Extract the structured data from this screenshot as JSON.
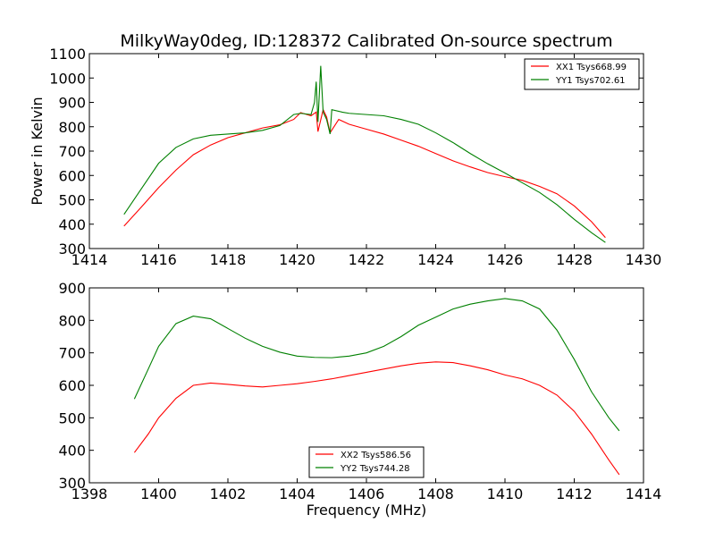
{
  "chart_data": [
    {
      "type": "line",
      "title": "MilkyWay0deg, ID:128372 Calibrated On-source spectrum",
      "xlabel": "",
      "ylabel": "Power in Kelvin",
      "xlim": [
        1414,
        1430
      ],
      "ylim": [
        300,
        1100
      ],
      "xticks": [
        "1414",
        "1416",
        "1418",
        "1420",
        "1422",
        "1424",
        "1426",
        "1428",
        "1430"
      ],
      "yticks": [
        "300",
        "400",
        "500",
        "600",
        "700",
        "800",
        "900",
        "1000",
        "1100"
      ],
      "grid": false,
      "legend": "top-right",
      "series": [
        {
          "name": "XX1 Tsys668.99",
          "color": "#ff0000",
          "x": [
            1415.0,
            1415.5,
            1416.0,
            1416.5,
            1417.0,
            1417.5,
            1418.0,
            1418.5,
            1419.0,
            1419.5,
            1419.9,
            1420.1,
            1420.4,
            1420.55,
            1420.6,
            1420.75,
            1420.85,
            1420.95,
            1421.2,
            1421.5,
            1422.0,
            1422.5,
            1423.0,
            1423.5,
            1424.0,
            1424.5,
            1425.0,
            1425.5,
            1426.0,
            1426.5,
            1427.0,
            1427.5,
            1428.0,
            1428.5,
            1428.9
          ],
          "y": [
            392,
            470,
            550,
            622,
            685,
            725,
            755,
            775,
            795,
            808,
            830,
            858,
            845,
            860,
            780,
            870,
            840,
            775,
            830,
            810,
            790,
            770,
            745,
            720,
            690,
            660,
            635,
            612,
            595,
            580,
            555,
            525,
            475,
            410,
            345
          ]
        },
        {
          "name": "YY1 Tsys702.61",
          "color": "#008000",
          "x": [
            1415.0,
            1415.5,
            1416.0,
            1416.5,
            1417.0,
            1417.5,
            1418.0,
            1418.5,
            1419.0,
            1419.5,
            1419.9,
            1420.1,
            1420.4,
            1420.5,
            1420.55,
            1420.6,
            1420.68,
            1420.75,
            1420.85,
            1420.95,
            1421.0,
            1421.3,
            1421.5,
            1422.0,
            1422.5,
            1423.0,
            1423.5,
            1424.0,
            1424.5,
            1425.0,
            1425.5,
            1426.0,
            1426.5,
            1427.0,
            1427.5,
            1428.0,
            1428.5,
            1428.9
          ],
          "y": [
            440,
            545,
            650,
            715,
            750,
            765,
            770,
            775,
            785,
            805,
            850,
            855,
            850,
            900,
            985,
            820,
            1050,
            860,
            830,
            770,
            870,
            860,
            855,
            850,
            845,
            830,
            810,
            775,
            735,
            690,
            648,
            610,
            570,
            530,
            480,
            420,
            365,
            325
          ]
        }
      ]
    },
    {
      "type": "line",
      "title": "",
      "xlabel": "Frequency (MHz)",
      "ylabel": "",
      "xlim": [
        1398,
        1414
      ],
      "ylim": [
        300,
        900
      ],
      "xticks": [
        "1398",
        "1400",
        "1402",
        "1404",
        "1406",
        "1408",
        "1410",
        "1412",
        "1414"
      ],
      "yticks": [
        "300",
        "400",
        "500",
        "600",
        "700",
        "800",
        "900"
      ],
      "grid": false,
      "legend": "bottom-center",
      "series": [
        {
          "name": "XX2 Tsys586.56",
          "color": "#ff0000",
          "x": [
            1399.3,
            1399.7,
            1400.0,
            1400.5,
            1401.0,
            1401.5,
            1402.0,
            1402.5,
            1403.0,
            1403.5,
            1404.0,
            1404.5,
            1405.0,
            1405.5,
            1406.0,
            1406.5,
            1407.0,
            1407.5,
            1408.0,
            1408.5,
            1409.0,
            1409.5,
            1410.0,
            1410.5,
            1411.0,
            1411.5,
            1412.0,
            1412.5,
            1413.0,
            1413.3
          ],
          "y": [
            393,
            450,
            500,
            560,
            600,
            607,
            603,
            598,
            595,
            600,
            605,
            612,
            620,
            630,
            640,
            650,
            660,
            668,
            672,
            670,
            660,
            648,
            632,
            620,
            600,
            570,
            520,
            450,
            370,
            325
          ]
        },
        {
          "name": "YY2 Tsys744.28",
          "color": "#008000",
          "x": [
            1399.3,
            1399.7,
            1400.0,
            1400.5,
            1401.0,
            1401.5,
            1402.0,
            1402.5,
            1403.0,
            1403.5,
            1404.0,
            1404.5,
            1405.0,
            1405.5,
            1406.0,
            1406.5,
            1407.0,
            1407.5,
            1408.0,
            1408.5,
            1409.0,
            1409.5,
            1410.0,
            1410.5,
            1411.0,
            1411.5,
            1412.0,
            1412.5,
            1413.0,
            1413.3
          ],
          "y": [
            558,
            650,
            720,
            790,
            813,
            805,
            775,
            745,
            720,
            702,
            690,
            686,
            685,
            690,
            700,
            720,
            750,
            785,
            810,
            835,
            850,
            860,
            867,
            860,
            835,
            770,
            680,
            580,
            500,
            460
          ]
        }
      ]
    }
  ]
}
